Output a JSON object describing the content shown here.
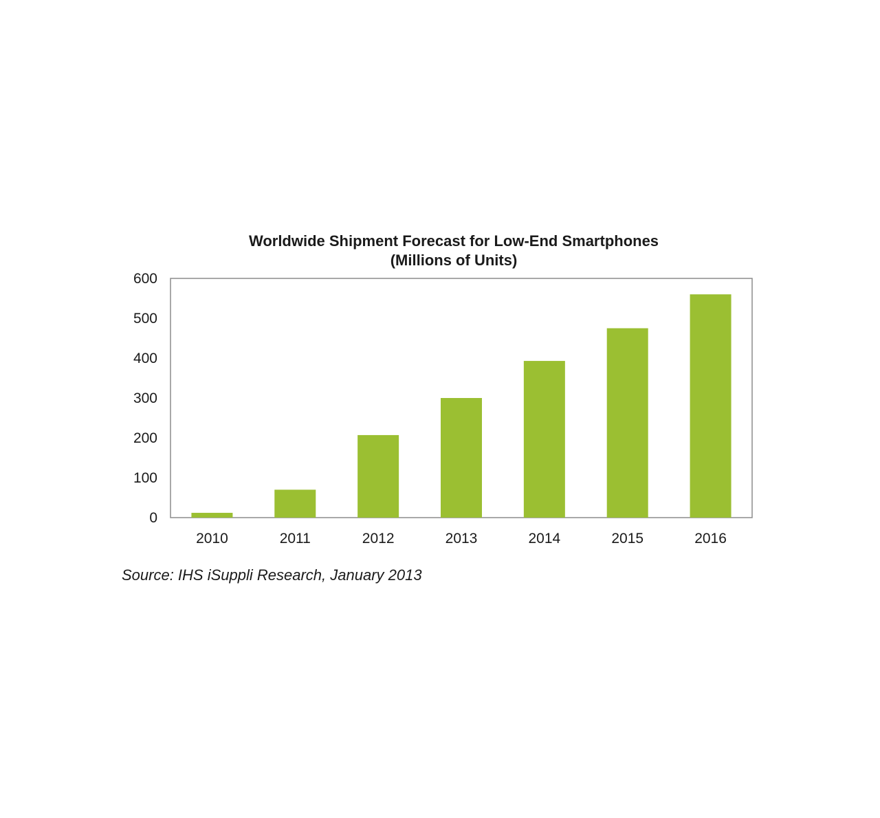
{
  "chart_data": {
    "type": "bar",
    "title": "Worldwide Shipment Forecast for Low-End Smartphones",
    "subtitle": "(Millions of Units)",
    "xlabel": "",
    "ylabel": "",
    "categories": [
      "2010",
      "2011",
      "2012",
      "2013",
      "2014",
      "2015",
      "2016"
    ],
    "values": [
      12,
      70,
      207,
      300,
      393,
      475,
      560
    ],
    "ylim": [
      0,
      600
    ],
    "yticks": [
      "0",
      "100",
      "200",
      "300",
      "400",
      "500",
      "600"
    ],
    "grid": false,
    "legend": "none",
    "bar_color": "#9bbf32",
    "frame_color": "#8c8c8c"
  },
  "source": "Source: IHS iSuppli Research, January 2013"
}
